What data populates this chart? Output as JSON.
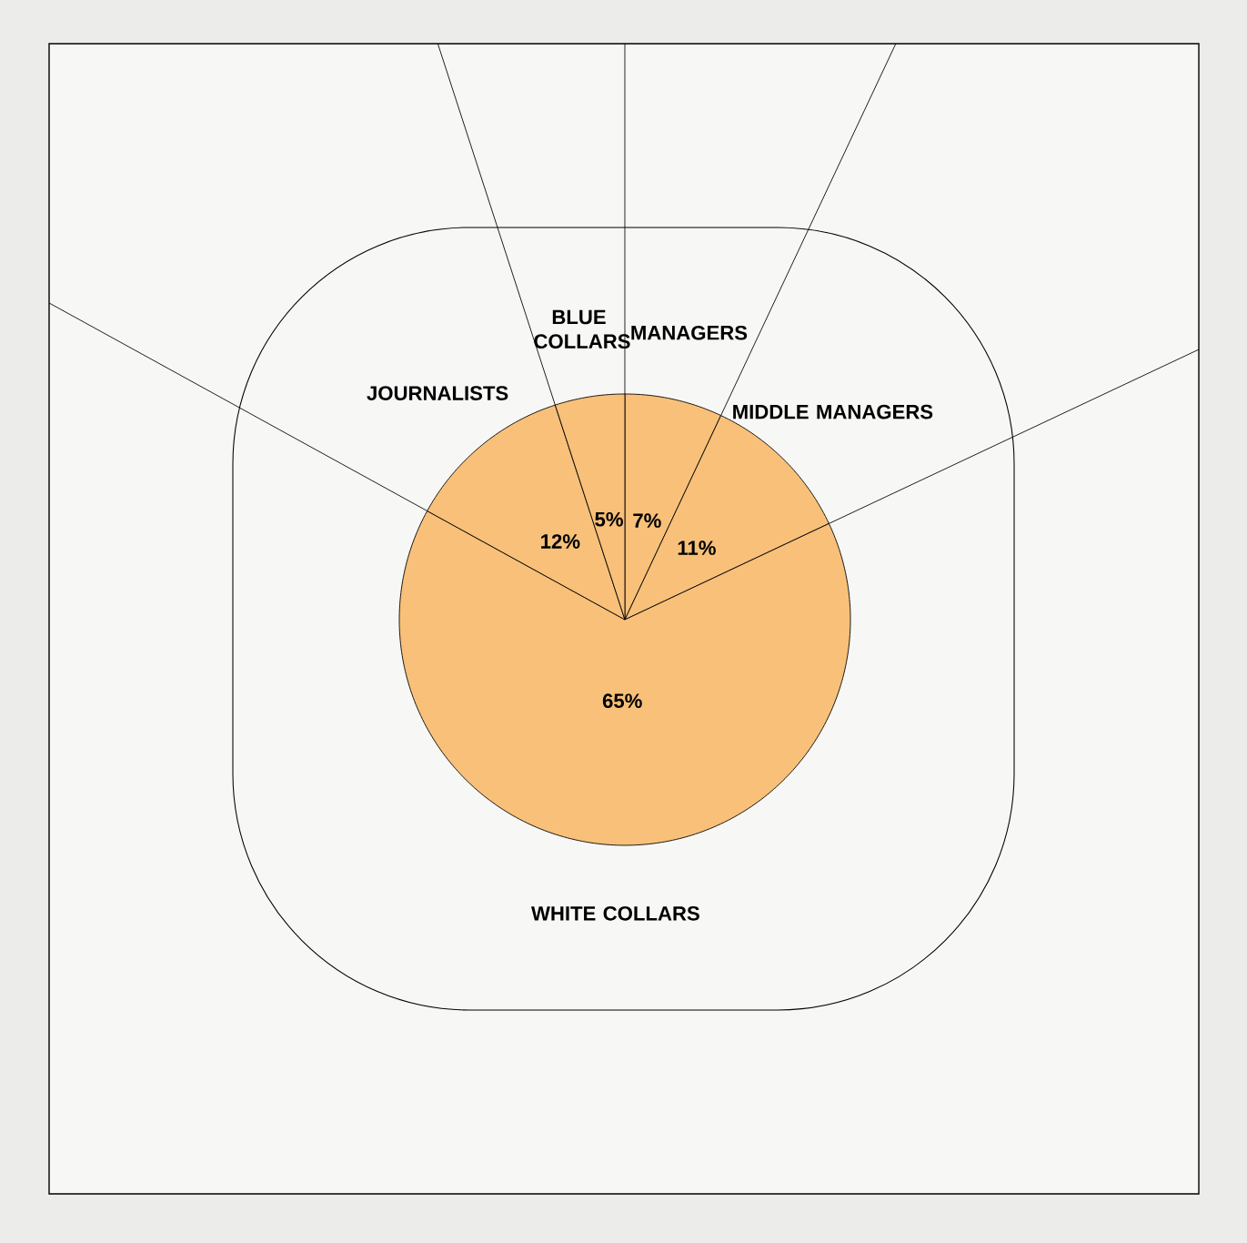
{
  "chart_data": {
    "type": "pie",
    "categories": [
      "MANAGERS",
      "MIDDLE MANAGERS",
      "WHITE COLLARS",
      "JOURNALISTS",
      "BLUE COLLARS"
    ],
    "values": [
      7,
      11,
      65,
      12,
      5
    ],
    "value_labels": [
      "7%",
      "11%",
      "65%",
      "12%",
      "5%"
    ],
    "colors": [
      "#f8c079",
      "#f8c079",
      "#f8c079",
      "#f8c079",
      "#f8c079"
    ]
  }
}
